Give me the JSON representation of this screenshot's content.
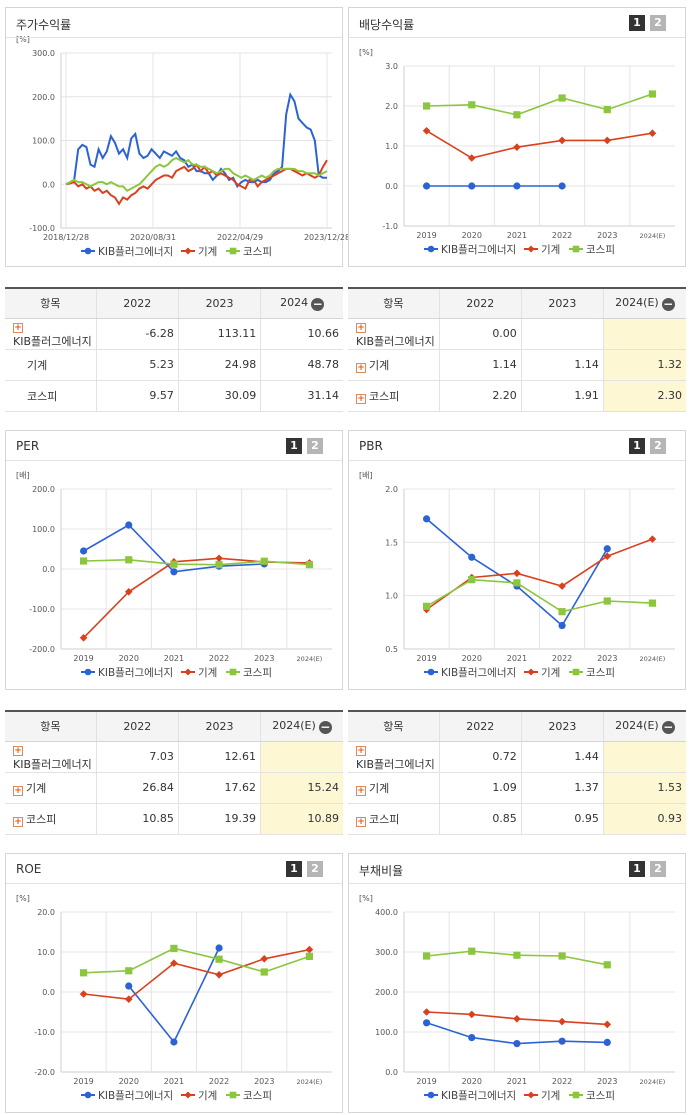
{
  "colors": {
    "kib": "#2b63d5",
    "gigye": "#d9401e",
    "kospi": "#8cc63f"
  },
  "legend": [
    "KIB플러그에너지",
    "기계",
    "코스피"
  ],
  "pages": [
    "1",
    "2"
  ],
  "icons": {
    "expand": "plus-icon",
    "collapse": "minus-icon"
  },
  "chart_data": [
    {
      "id": "stock",
      "title": "주가수익률",
      "type": "line",
      "unit": "[%]",
      "ylim": [
        -100,
        300
      ],
      "yticks": [
        "300.0",
        "200.0",
        "100.0",
        "0.0",
        "-100.0"
      ],
      "xtick_labels": [
        "2018/12/28",
        "2020/08/31",
        "2022/04/29",
        "2023/12/28"
      ],
      "series": [
        {
          "name": "KIB플러그에너지",
          "values": [
            0,
            5,
            10,
            80,
            90,
            85,
            45,
            40,
            80,
            60,
            75,
            110,
            95,
            70,
            80,
            60,
            105,
            115,
            70,
            60,
            65,
            80,
            70,
            60,
            75,
            70,
            65,
            75,
            60,
            55,
            40,
            45,
            30,
            30,
            25,
            25,
            10,
            20,
            35,
            25,
            10,
            15,
            -5,
            5,
            10,
            5,
            5,
            10,
            5,
            5,
            10,
            25,
            30,
            40,
            160,
            205,
            190,
            150,
            140,
            130,
            125,
            100,
            20,
            15,
            15
          ]
        },
        {
          "name": "기계",
          "values": [
            0,
            2,
            5,
            -5,
            0,
            -10,
            -5,
            -15,
            -10,
            -20,
            -15,
            -25,
            -30,
            -45,
            -30,
            -35,
            -25,
            -20,
            -10,
            -5,
            -10,
            0,
            10,
            15,
            20,
            20,
            15,
            30,
            35,
            40,
            30,
            35,
            45,
            30,
            40,
            25,
            30,
            20,
            25,
            20,
            15,
            10,
            0,
            -5,
            -10,
            10,
            10,
            -5,
            5,
            10,
            15,
            20,
            25,
            30,
            35,
            35,
            30,
            25,
            20,
            25,
            20,
            15,
            20,
            40,
            55
          ]
        },
        {
          "name": "코스피",
          "values": [
            0,
            5,
            10,
            5,
            5,
            0,
            -5,
            0,
            5,
            5,
            0,
            5,
            0,
            -5,
            -5,
            -15,
            -10,
            -5,
            0,
            10,
            20,
            30,
            40,
            45,
            40,
            45,
            55,
            60,
            55,
            50,
            55,
            45,
            45,
            40,
            40,
            35,
            30,
            25,
            30,
            35,
            35,
            25,
            20,
            15,
            20,
            15,
            10,
            15,
            20,
            15,
            20,
            30,
            35,
            35,
            35,
            35,
            35,
            30,
            30,
            25,
            25,
            25,
            20,
            25,
            30
          ]
        }
      ]
    },
    {
      "id": "dividend",
      "title": "배당수익률",
      "type": "line",
      "unit": "[%]",
      "ylim": [
        -1,
        3
      ],
      "yticks": [
        "3.0",
        "2.0",
        "1.0",
        "0.0",
        "-1.0"
      ],
      "categories": [
        "2019",
        "2020",
        "2021",
        "2022",
        "2023",
        "2024(E)"
      ],
      "series": [
        {
          "name": "KIB플러그에너지",
          "values": [
            0,
            0,
            0,
            0,
            null,
            null
          ]
        },
        {
          "name": "기계",
          "values": [
            1.38,
            0.7,
            0.97,
            1.14,
            1.14,
            1.32
          ]
        },
        {
          "name": "코스피",
          "values": [
            2.0,
            2.03,
            1.78,
            2.2,
            1.91,
            2.3
          ]
        }
      ]
    },
    {
      "id": "per",
      "title": "PER",
      "type": "line",
      "unit": "[배]",
      "ylim": [
        -200,
        200
      ],
      "yticks": [
        "200.0",
        "100.0",
        "0.0",
        "-100.0",
        "-200.0"
      ],
      "categories": [
        "2019",
        "2020",
        "2021",
        "2022",
        "2023",
        "2024(E)"
      ],
      "series": [
        {
          "name": "KIB플러그에너지",
          "values": [
            45,
            110,
            -7,
            7.03,
            12.61,
            null
          ]
        },
        {
          "name": "기계",
          "values": [
            -172,
            -57,
            18,
            26.84,
            17.62,
            15.24
          ]
        },
        {
          "name": "코스피",
          "values": [
            20,
            23,
            12,
            10.85,
            19.39,
            10.89
          ]
        }
      ]
    },
    {
      "id": "pbr",
      "title": "PBR",
      "type": "line",
      "unit": "[배]",
      "ylim": [
        0.5,
        2.0
      ],
      "yticks": [
        "2.0",
        "1.5",
        "1.0",
        "0.5"
      ],
      "categories": [
        "2019",
        "2020",
        "2021",
        "2022",
        "2023",
        "2024(E)"
      ],
      "series": [
        {
          "name": "KIB플러그에너지",
          "values": [
            1.72,
            1.36,
            1.09,
            0.72,
            1.44,
            null
          ]
        },
        {
          "name": "기계",
          "values": [
            0.87,
            1.17,
            1.21,
            1.09,
            1.37,
            1.53
          ]
        },
        {
          "name": "코스피",
          "values": [
            0.9,
            1.15,
            1.12,
            0.85,
            0.95,
            0.93
          ]
        }
      ]
    },
    {
      "id": "roe",
      "title": "ROE",
      "type": "line",
      "unit": "[%]",
      "ylim": [
        -20,
        20
      ],
      "yticks": [
        "20.0",
        "10.0",
        "0.0",
        "-10.0",
        "-20.0"
      ],
      "categories": [
        "2019",
        "2020",
        "2021",
        "2022",
        "2023",
        "2024(E)"
      ],
      "series": [
        {
          "name": "KIB플러그에너지",
          "values": [
            null,
            1.5,
            -12.5,
            11,
            null,
            null
          ]
        },
        {
          "name": "기계",
          "values": [
            -0.5,
            -1.8,
            7.2,
            4.3,
            8.3,
            10.6
          ]
        },
        {
          "name": "코스피",
          "values": [
            4.8,
            5.3,
            10.9,
            8.2,
            5.0,
            8.9
          ]
        }
      ]
    },
    {
      "id": "debt",
      "title": "부채비율",
      "type": "line",
      "unit": "[%]",
      "ylim": [
        0,
        400
      ],
      "yticks": [
        "400.0",
        "300.0",
        "200.0",
        "100.0",
        "0.0"
      ],
      "categories": [
        "2019",
        "2020",
        "2021",
        "2022",
        "2023",
        "2024(E)"
      ],
      "series": [
        {
          "name": "KIB플러그에너지",
          "values": [
            123,
            86,
            71,
            77,
            74,
            null
          ]
        },
        {
          "name": "기계",
          "values": [
            150,
            144,
            133,
            126,
            119,
            null
          ]
        },
        {
          "name": "코스피",
          "values": [
            290,
            302,
            292,
            290,
            268,
            null
          ]
        }
      ]
    }
  ],
  "tables": [
    {
      "id": "stock",
      "header": [
        "항목",
        "2022",
        "2023",
        "2024"
      ],
      "collapse": true,
      "rows": [
        {
          "name": "KIB플러그에너지",
          "plus": true,
          "cells": [
            "-6.28",
            "113.11",
            "10.66"
          ]
        },
        {
          "name": "기계",
          "plus": false,
          "cells": [
            "5.23",
            "24.98",
            "48.78"
          ]
        },
        {
          "name": "코스피",
          "plus": false,
          "cells": [
            "9.57",
            "30.09",
            "31.14"
          ]
        }
      ]
    },
    {
      "id": "dividend",
      "header": [
        "항목",
        "2022",
        "2023",
        "2024(E)"
      ],
      "collapse": true,
      "rows": [
        {
          "name": "KIB플러그에너지",
          "plus": true,
          "cells": [
            "0.00",
            "",
            ""
          ]
        },
        {
          "name": "기계",
          "plus": true,
          "cells": [
            "1.14",
            "1.14",
            "1.32"
          ]
        },
        {
          "name": "코스피",
          "plus": true,
          "cells": [
            "2.20",
            "1.91",
            "2.30"
          ]
        }
      ]
    },
    {
      "id": "per",
      "header": [
        "항목",
        "2022",
        "2023",
        "2024(E)"
      ],
      "collapse": true,
      "rows": [
        {
          "name": "KIB플러그에너지",
          "plus": true,
          "cells": [
            "7.03",
            "12.61",
            ""
          ]
        },
        {
          "name": "기계",
          "plus": true,
          "cells": [
            "26.84",
            "17.62",
            "15.24"
          ]
        },
        {
          "name": "코스피",
          "plus": true,
          "cells": [
            "10.85",
            "19.39",
            "10.89"
          ]
        }
      ]
    },
    {
      "id": "pbr",
      "header": [
        "항목",
        "2022",
        "2023",
        "2024(E)"
      ],
      "collapse": true,
      "rows": [
        {
          "name": "KIB플러그에너지",
          "plus": true,
          "cells": [
            "0.72",
            "1.44",
            ""
          ]
        },
        {
          "name": "기계",
          "plus": true,
          "cells": [
            "1.09",
            "1.37",
            "1.53"
          ]
        },
        {
          "name": "코스피",
          "plus": true,
          "cells": [
            "0.85",
            "0.95",
            "0.93"
          ]
        }
      ]
    }
  ]
}
